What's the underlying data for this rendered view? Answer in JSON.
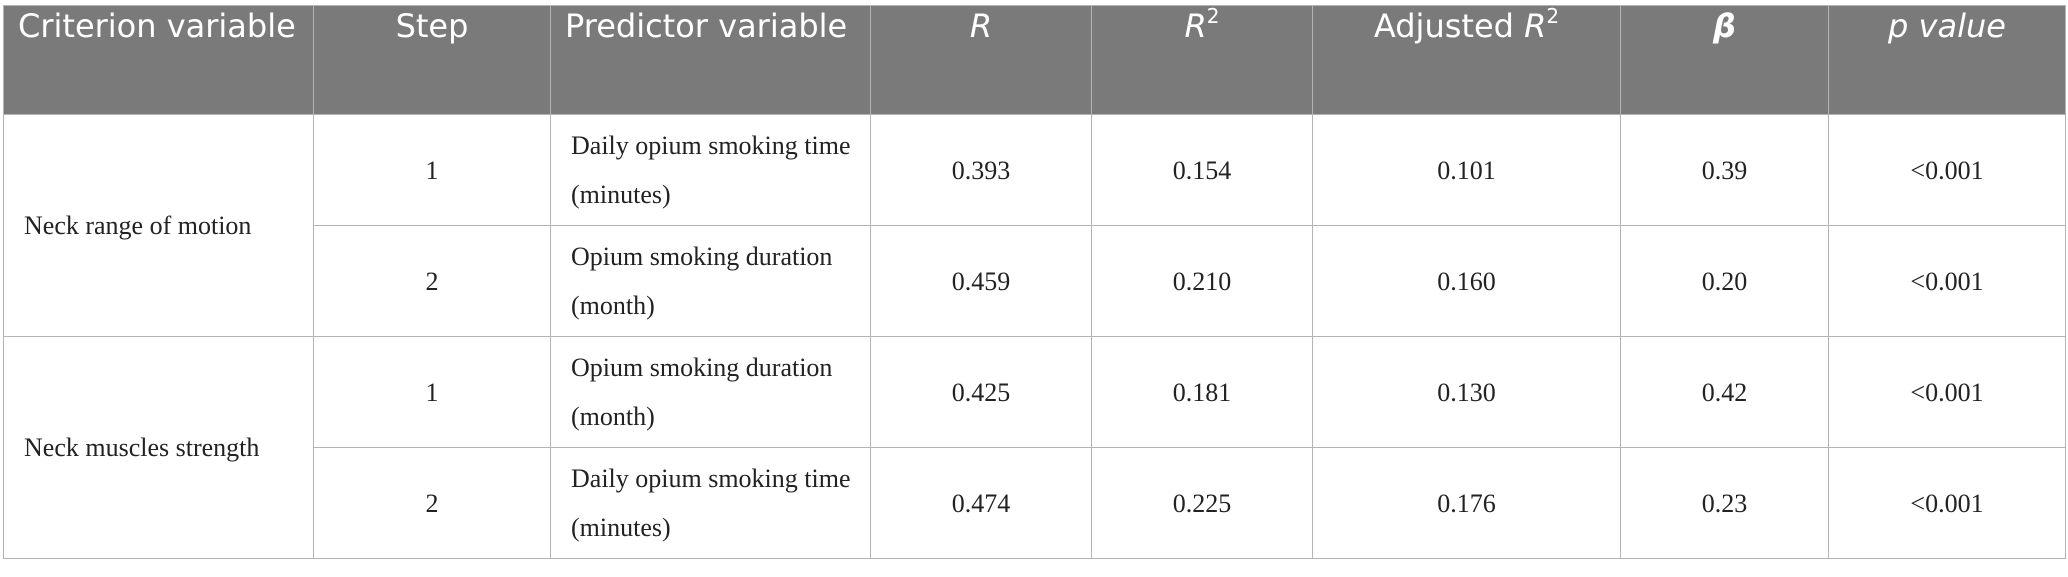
{
  "header": {
    "criterion": "Criterion variable",
    "step": "Step",
    "predictor": "Predictor variable",
    "r": "R",
    "r2_base": "R",
    "r2_sup": "2",
    "adj_prefix": "Adjusted ",
    "adj_base": "R",
    "adj_sup": "2",
    "beta": "β",
    "p": "p value"
  },
  "groups": [
    {
      "criterion": "Neck range of motion",
      "rows": [
        {
          "step": "1",
          "predictor": "Daily opium smoking time (minutes)",
          "r": "0.393",
          "r2": "0.154",
          "adj_r2": "0.101",
          "beta": "0.39",
          "p": "<0.001"
        },
        {
          "step": "2",
          "predictor": "Opium smoking duration (month)",
          "r": "0.459",
          "r2": "0.210",
          "adj_r2": "0.160",
          "beta": "0.20",
          "p": "<0.001"
        }
      ]
    },
    {
      "criterion": "Neck muscles strength",
      "rows": [
        {
          "step": "1",
          "predictor": "Opium smoking duration (month)",
          "r": "0.425",
          "r2": "0.181",
          "adj_r2": "0.130",
          "beta": "0.42",
          "p": "<0.001"
        },
        {
          "step": "2",
          "predictor": "Daily opium smoking time (minutes)",
          "r": "0.474",
          "r2": "0.225",
          "adj_r2": "0.176",
          "beta": "0.23",
          "p": "<0.001"
        }
      ]
    }
  ]
}
